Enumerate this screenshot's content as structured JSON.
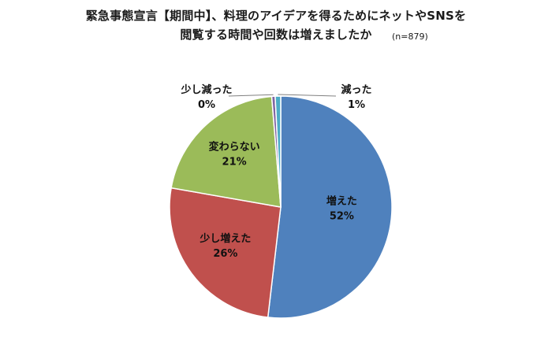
{
  "title_line1": "緊急事態宣言【期間中】、料理のアイデアを得るためにネットやSNSを",
  "title_line2": "閲覧する時間や回数は増えましたか",
  "sample_note": "(n=879)",
  "chart_data": {
    "type": "pie",
    "start_angle_deg": 0,
    "direction": "clockwise",
    "slices": [
      {
        "label": "増えた",
        "value": 52,
        "value_text": "52%",
        "color": "#4f81bd"
      },
      {
        "label": "少し増えた",
        "value": 26,
        "value_text": "26%",
        "color": "#c0504d"
      },
      {
        "label": "変わらない",
        "value": 21,
        "value_text": "21%",
        "color": "#9bbb59"
      },
      {
        "label": "少し減った",
        "value": 0.5,
        "value_text": "0%",
        "color": "#8064a2"
      },
      {
        "label": "減った",
        "value": 0.8,
        "value_text": "1%",
        "color": "#4bacc6"
      }
    ]
  }
}
